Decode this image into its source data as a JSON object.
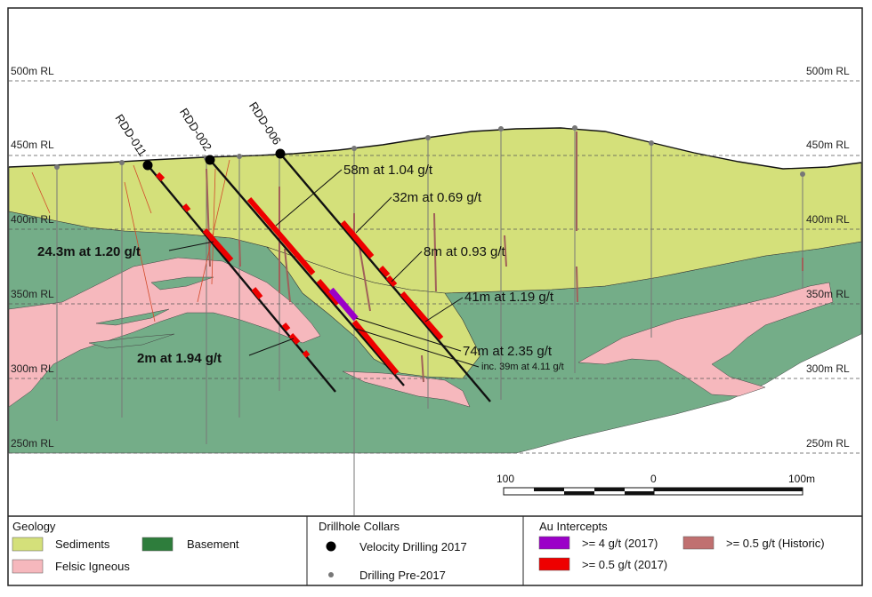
{
  "rl_labels": [
    "500m RL",
    "450m RL",
    "400m RL",
    "350m RL",
    "300m RL",
    "250m RL"
  ],
  "holes": [
    "RDD-011",
    "RDD-002",
    "RDD-006"
  ],
  "annotations": {
    "a1": "58m at 1.04 g/t",
    "a2": "32m at 0.69 g/t",
    "a3": "24.3m at 1.20 g/t",
    "a4": "8m at 0.93 g/t",
    "a5": "41m at 1.19 g/t",
    "a6": "74m at 2.35 g/t",
    "a7": "inc. 39m at 4.11 g/t",
    "a8": "2m at 1.94 g/t"
  },
  "scale": {
    "left": "100",
    "mid": "0",
    "right": "100m"
  },
  "legend": {
    "geology": {
      "title": "Geology",
      "items": [
        {
          "label": "Sediments",
          "color": "#d4e07a"
        },
        {
          "label": "Basement",
          "color": "#2e7d3c"
        },
        {
          "label": "Felsic Igneous",
          "color": "#f6b8bd"
        }
      ]
    },
    "collars": {
      "title": "Drillhole Collars",
      "items": [
        {
          "label": "Velocity Drilling 2017",
          "symbol": "large-black-dot"
        },
        {
          "label": "Drilling Pre-2017",
          "symbol": "small-grey-dot"
        }
      ]
    },
    "intercepts": {
      "title": "Au Intercepts",
      "items": [
        {
          "label": ">= 4 g/t (2017)",
          "color": "#9b00c8"
        },
        {
          "label": ">= 0.5 g/t (Historic)",
          "color": "#c07070"
        },
        {
          "label": ">= 0.5 g/t (2017)",
          "color": "#ee0000"
        }
      ]
    }
  },
  "colors": {
    "sediments": "#d4e07a",
    "basement": "#74ad88",
    "felsic": "#f6b8bd",
    "intercept_2017": "#ee0000",
    "intercept_high": "#9b00c8",
    "intercept_historic": "#a0605a"
  }
}
